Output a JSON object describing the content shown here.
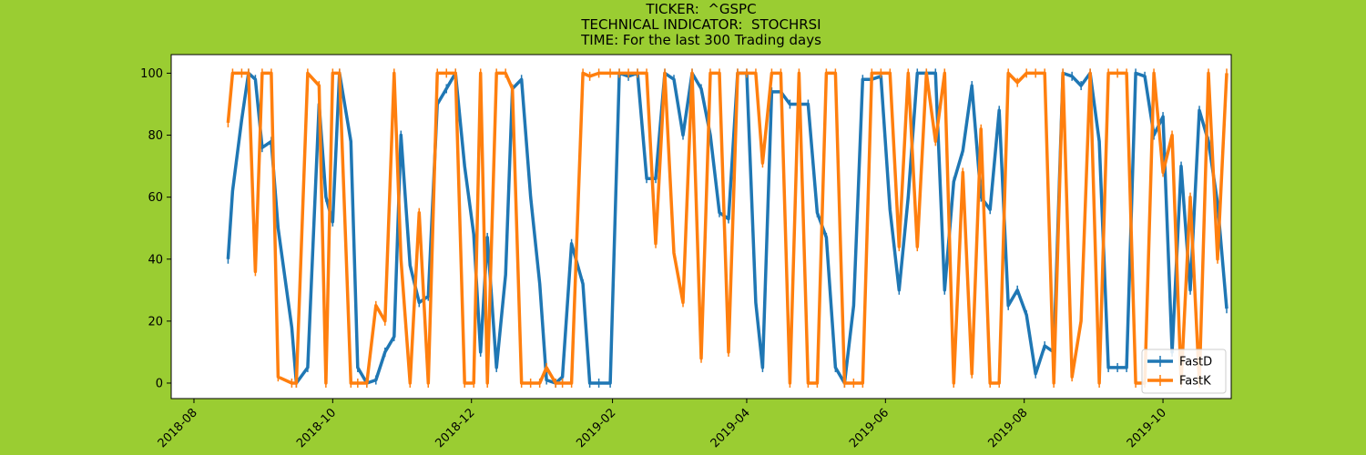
{
  "header": {
    "ticker_line": "TICKER:  ^GSPC",
    "indicator_line": "TECHNICAL INDICATOR:  STOCHRSI",
    "time_line": "TIME: For the last 300 Trading days"
  },
  "chart_data": {
    "type": "line",
    "title": "TICKER:  ^GSPC\nTECHNICAL INDICATOR:  STOCHRSI\nTIME: For the last 300 Trading days",
    "xlabel": "",
    "ylabel": "",
    "xlim": [
      "2018-07-22",
      "2019-10-31"
    ],
    "ylim": [
      -5,
      106
    ],
    "x_ticks": [
      "2018-08",
      "2018-10",
      "2018-12",
      "2019-02",
      "2019-04",
      "2019-06",
      "2019-08",
      "2019-10"
    ],
    "y_ticks": [
      0,
      20,
      40,
      60,
      80,
      100
    ],
    "grid": false,
    "legend_position": "lower-right",
    "colors": {
      "background": "#9acd32",
      "plot_area": "#ffffff",
      "FastD": "#1f77b4",
      "FastK": "#ff7f0e"
    },
    "series": [
      {
        "name": "FastD",
        "color": "#1f77b4",
        "points": [
          [
            "2018-08-16",
            40
          ],
          [
            "2018-08-18",
            62
          ],
          [
            "2018-08-22",
            85
          ],
          [
            "2018-08-25",
            100
          ],
          [
            "2018-08-28",
            98
          ],
          [
            "2018-08-31",
            76
          ],
          [
            "2018-09-04",
            78
          ],
          [
            "2018-09-07",
            50
          ],
          [
            "2018-09-13",
            18
          ],
          [
            "2018-09-15",
            0
          ],
          [
            "2018-09-20",
            5
          ],
          [
            "2018-09-25",
            90
          ],
          [
            "2018-09-28",
            60
          ],
          [
            "2018-10-01",
            52
          ],
          [
            "2018-10-04",
            100
          ],
          [
            "2018-10-09",
            78
          ],
          [
            "2018-10-12",
            5
          ],
          [
            "2018-10-16",
            0
          ],
          [
            "2018-10-20",
            1
          ],
          [
            "2018-10-24",
            10
          ],
          [
            "2018-10-28",
            15
          ],
          [
            "2018-10-31",
            80
          ],
          [
            "2018-11-04",
            38
          ],
          [
            "2018-11-08",
            26
          ],
          [
            "2018-11-12",
            28
          ],
          [
            "2018-11-16",
            90
          ],
          [
            "2018-11-20",
            95
          ],
          [
            "2018-11-24",
            100
          ],
          [
            "2018-11-28",
            70
          ],
          [
            "2018-12-02",
            48
          ],
          [
            "2018-12-05",
            10
          ],
          [
            "2018-12-08",
            47
          ],
          [
            "2018-12-12",
            5
          ],
          [
            "2018-12-16",
            35
          ],
          [
            "2018-12-19",
            95
          ],
          [
            "2018-12-23",
            98
          ],
          [
            "2018-12-27",
            60
          ],
          [
            "2018-12-31",
            32
          ],
          [
            "2019-01-03",
            1
          ],
          [
            "2019-01-07",
            0
          ],
          [
            "2019-01-10",
            2
          ],
          [
            "2019-01-14",
            45
          ],
          [
            "2019-01-19",
            32
          ],
          [
            "2019-01-22",
            0
          ],
          [
            "2019-01-26",
            0
          ],
          [
            "2019-01-31",
            0
          ],
          [
            "2019-02-04",
            100
          ],
          [
            "2019-02-08",
            99
          ],
          [
            "2019-02-12",
            100
          ],
          [
            "2019-02-16",
            66
          ],
          [
            "2019-02-20",
            66
          ],
          [
            "2019-02-24",
            100
          ],
          [
            "2019-02-28",
            98
          ],
          [
            "2019-03-04",
            80
          ],
          [
            "2019-03-08",
            100
          ],
          [
            "2019-03-12",
            95
          ],
          [
            "2019-03-16",
            80
          ],
          [
            "2019-03-20",
            55
          ],
          [
            "2019-03-24",
            53
          ],
          [
            "2019-03-28",
            100
          ],
          [
            "2019-04-01",
            100
          ],
          [
            "2019-04-05",
            26
          ],
          [
            "2019-04-08",
            5
          ],
          [
            "2019-04-12",
            94
          ],
          [
            "2019-04-16",
            94
          ],
          [
            "2019-04-20",
            90
          ],
          [
            "2019-04-24",
            90
          ],
          [
            "2019-04-28",
            90
          ],
          [
            "2019-05-02",
            55
          ],
          [
            "2019-05-06",
            47
          ],
          [
            "2019-05-10",
            5
          ],
          [
            "2019-05-14",
            0
          ],
          [
            "2019-05-18",
            25
          ],
          [
            "2019-05-22",
            98
          ],
          [
            "2019-05-26",
            98
          ],
          [
            "2019-05-30",
            99
          ],
          [
            "2019-06-03",
            56
          ],
          [
            "2019-06-07",
            30
          ],
          [
            "2019-06-11",
            60
          ],
          [
            "2019-06-15",
            100
          ],
          [
            "2019-06-19",
            100
          ],
          [
            "2019-06-23",
            100
          ],
          [
            "2019-06-27",
            30
          ],
          [
            "2019-07-01",
            65
          ],
          [
            "2019-07-05",
            75
          ],
          [
            "2019-07-09",
            96
          ],
          [
            "2019-07-13",
            60
          ],
          [
            "2019-07-17",
            56
          ],
          [
            "2019-07-21",
            88
          ],
          [
            "2019-07-25",
            25
          ],
          [
            "2019-07-29",
            30
          ],
          [
            "2019-08-02",
            22
          ],
          [
            "2019-08-06",
            3
          ],
          [
            "2019-08-10",
            12
          ],
          [
            "2019-08-14",
            10
          ],
          [
            "2019-08-18",
            100
          ],
          [
            "2019-08-22",
            99
          ],
          [
            "2019-08-26",
            96
          ],
          [
            "2019-08-30",
            100
          ],
          [
            "2019-09-03",
            78
          ],
          [
            "2019-09-07",
            5
          ],
          [
            "2019-09-11",
            5
          ],
          [
            "2019-09-15",
            5
          ],
          [
            "2019-09-19",
            100
          ],
          [
            "2019-09-23",
            99
          ],
          [
            "2019-09-27",
            80
          ],
          [
            "2019-10-01",
            86
          ],
          [
            "2019-10-05",
            10
          ],
          [
            "2019-10-09",
            70
          ],
          [
            "2019-10-13",
            30
          ],
          [
            "2019-10-17",
            88
          ],
          [
            "2019-10-21",
            78
          ],
          [
            "2019-10-25",
            58
          ],
          [
            "2019-10-29",
            24
          ]
        ]
      },
      {
        "name": "FastK",
        "color": "#ff7f0e",
        "points": [
          [
            "2018-08-16",
            84
          ],
          [
            "2018-08-18",
            100
          ],
          [
            "2018-08-22",
            100
          ],
          [
            "2018-08-25",
            100
          ],
          [
            "2018-08-28",
            36
          ],
          [
            "2018-08-31",
            100
          ],
          [
            "2018-09-04",
            100
          ],
          [
            "2018-09-07",
            2
          ],
          [
            "2018-09-13",
            0
          ],
          [
            "2018-09-15",
            0
          ],
          [
            "2018-09-20",
            100
          ],
          [
            "2018-09-25",
            96
          ],
          [
            "2018-09-28",
            0
          ],
          [
            "2018-10-01",
            100
          ],
          [
            "2018-10-04",
            100
          ],
          [
            "2018-10-09",
            0
          ],
          [
            "2018-10-12",
            0
          ],
          [
            "2018-10-16",
            0
          ],
          [
            "2018-10-20",
            25
          ],
          [
            "2018-10-24",
            20
          ],
          [
            "2018-10-28",
            100
          ],
          [
            "2018-10-31",
            40
          ],
          [
            "2018-11-04",
            0
          ],
          [
            "2018-11-08",
            55
          ],
          [
            "2018-11-12",
            0
          ],
          [
            "2018-11-16",
            100
          ],
          [
            "2018-11-20",
            100
          ],
          [
            "2018-11-24",
            100
          ],
          [
            "2018-11-28",
            0
          ],
          [
            "2018-12-02",
            0
          ],
          [
            "2018-12-05",
            100
          ],
          [
            "2018-12-08",
            0
          ],
          [
            "2018-12-12",
            100
          ],
          [
            "2018-12-16",
            100
          ],
          [
            "2018-12-19",
            95
          ],
          [
            "2018-12-23",
            0
          ],
          [
            "2018-12-27",
            0
          ],
          [
            "2018-12-31",
            0
          ],
          [
            "2019-01-03",
            5
          ],
          [
            "2019-01-07",
            0
          ],
          [
            "2019-01-10",
            0
          ],
          [
            "2019-01-14",
            0
          ],
          [
            "2019-01-19",
            100
          ],
          [
            "2019-01-22",
            99
          ],
          [
            "2019-01-26",
            100
          ],
          [
            "2019-01-31",
            100
          ],
          [
            "2019-02-04",
            100
          ],
          [
            "2019-02-08",
            100
          ],
          [
            "2019-02-12",
            100
          ],
          [
            "2019-02-16",
            100
          ],
          [
            "2019-02-20",
            45
          ],
          [
            "2019-02-24",
            100
          ],
          [
            "2019-02-28",
            42
          ],
          [
            "2019-03-04",
            26
          ],
          [
            "2019-03-08",
            100
          ],
          [
            "2019-03-12",
            8
          ],
          [
            "2019-03-16",
            100
          ],
          [
            "2019-03-20",
            100
          ],
          [
            "2019-03-24",
            10
          ],
          [
            "2019-03-28",
            100
          ],
          [
            "2019-04-01",
            100
          ],
          [
            "2019-04-05",
            100
          ],
          [
            "2019-04-08",
            71
          ],
          [
            "2019-04-12",
            100
          ],
          [
            "2019-04-16",
            100
          ],
          [
            "2019-04-20",
            0
          ],
          [
            "2019-04-24",
            100
          ],
          [
            "2019-04-28",
            0
          ],
          [
            "2019-05-02",
            0
          ],
          [
            "2019-05-06",
            100
          ],
          [
            "2019-05-10",
            100
          ],
          [
            "2019-05-14",
            0
          ],
          [
            "2019-05-18",
            0
          ],
          [
            "2019-05-22",
            0
          ],
          [
            "2019-05-26",
            100
          ],
          [
            "2019-05-30",
            100
          ],
          [
            "2019-06-03",
            100
          ],
          [
            "2019-06-07",
            44
          ],
          [
            "2019-06-11",
            100
          ],
          [
            "2019-06-15",
            44
          ],
          [
            "2019-06-19",
            100
          ],
          [
            "2019-06-23",
            78
          ],
          [
            "2019-06-27",
            100
          ],
          [
            "2019-07-01",
            0
          ],
          [
            "2019-07-05",
            68
          ],
          [
            "2019-07-09",
            3
          ],
          [
            "2019-07-13",
            82
          ],
          [
            "2019-07-17",
            0
          ],
          [
            "2019-07-21",
            0
          ],
          [
            "2019-07-25",
            100
          ],
          [
            "2019-07-29",
            97
          ],
          [
            "2019-08-02",
            100
          ],
          [
            "2019-08-06",
            100
          ],
          [
            "2019-08-10",
            100
          ],
          [
            "2019-08-14",
            0
          ],
          [
            "2019-08-18",
            100
          ],
          [
            "2019-08-22",
            2
          ],
          [
            "2019-08-26",
            20
          ],
          [
            "2019-08-30",
            100
          ],
          [
            "2019-09-03",
            0
          ],
          [
            "2019-09-07",
            100
          ],
          [
            "2019-09-11",
            100
          ],
          [
            "2019-09-15",
            100
          ],
          [
            "2019-09-19",
            0
          ],
          [
            "2019-09-23",
            0
          ],
          [
            "2019-09-27",
            100
          ],
          [
            "2019-10-01",
            68
          ],
          [
            "2019-10-05",
            80
          ],
          [
            "2019-10-09",
            0
          ],
          [
            "2019-10-13",
            60
          ],
          [
            "2019-10-17",
            0
          ],
          [
            "2019-10-21",
            100
          ],
          [
            "2019-10-25",
            40
          ],
          [
            "2019-10-29",
            100
          ]
        ]
      }
    ]
  }
}
